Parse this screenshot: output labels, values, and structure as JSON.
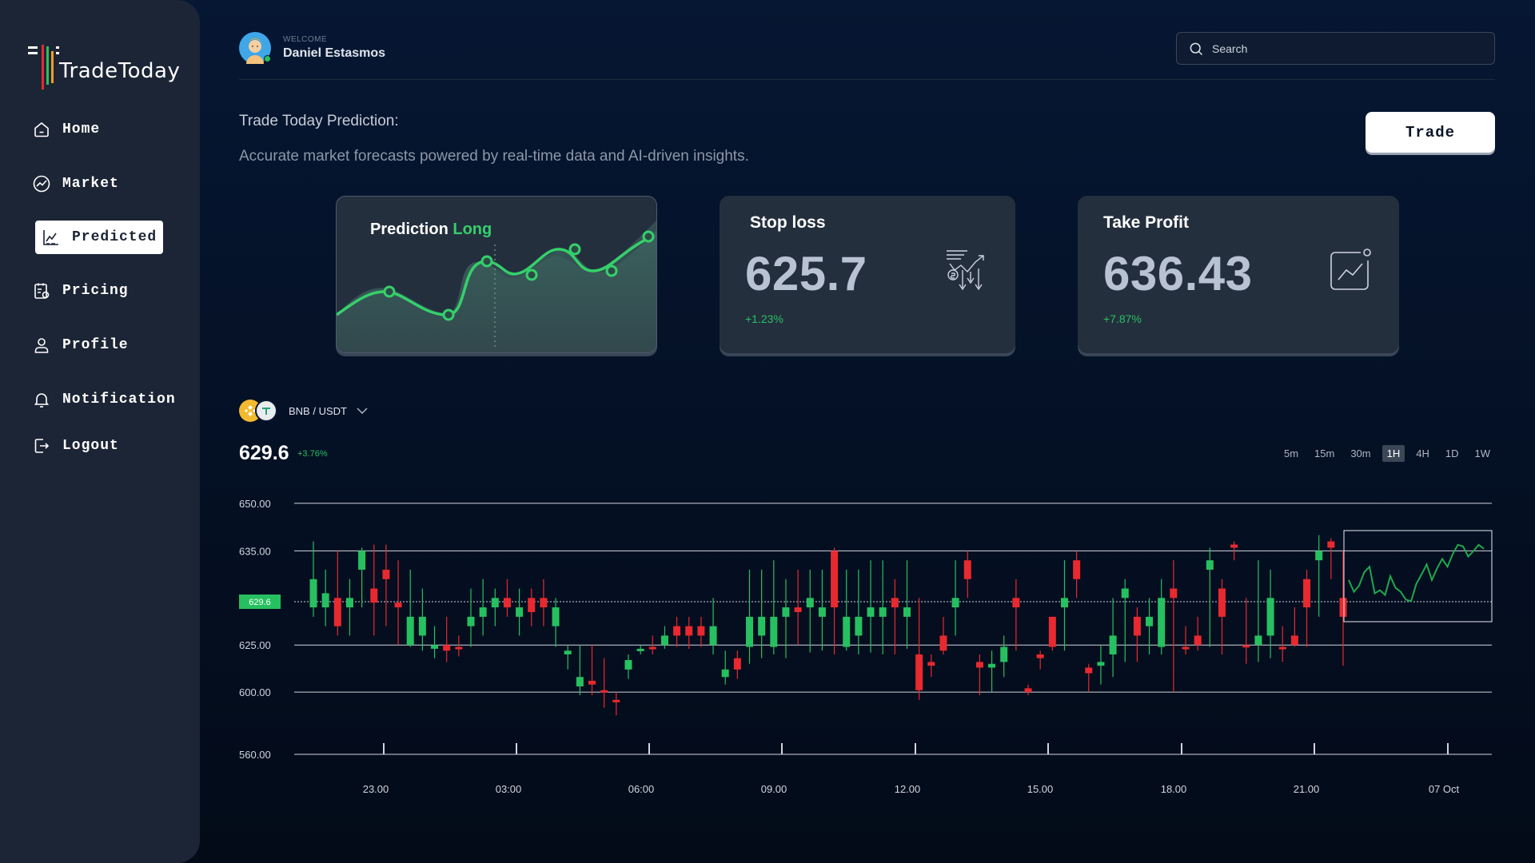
{
  "app": {
    "name": "TradeToday"
  },
  "sidebar": {
    "items": [
      {
        "label": "Home",
        "icon": "home-icon"
      },
      {
        "label": "Market",
        "icon": "market-icon"
      },
      {
        "label": "Predicted",
        "icon": "predicted-icon",
        "active": true
      },
      {
        "label": "Pricing",
        "icon": "pricing-icon"
      },
      {
        "label": "Profile",
        "icon": "profile-icon"
      },
      {
        "label": "Notification",
        "icon": "bell-icon"
      },
      {
        "label": "Logout",
        "icon": "logout-icon"
      }
    ]
  },
  "header": {
    "welcome": "WELCOME",
    "user_name": "Daniel Estasmos",
    "search_placeholder": "Search"
  },
  "prediction": {
    "title": "Trade Today Prediction:",
    "subtitle": "Accurate market forecasts powered by real-time data and AI-driven insights.",
    "trade_button": "Trade",
    "card_label": "Prediction",
    "direction": "Long"
  },
  "stop_loss": {
    "label": "Stop loss",
    "value": "625.7",
    "change": "+1.23%"
  },
  "take_profit": {
    "label": "Take Profit",
    "value": "636.43",
    "change": "+7.87%"
  },
  "market": {
    "pair": "BNB / USDT",
    "price": "629.6",
    "change": "+3.76%",
    "timeframes": [
      "5m",
      "15m",
      "30m",
      "1H",
      "4H",
      "1D",
      "1W"
    ],
    "active_timeframe": "1H"
  },
  "colors": {
    "up": "#27c060",
    "down": "#e8292f",
    "accent_green": "#35d06b",
    "background": "#061733",
    "sidebar": "#1c2535",
    "card": "#242f3e"
  },
  "chart_data": {
    "type": "candlestick",
    "y_ticks": [
      "650.00",
      "635.00",
      "625.00",
      "600.00",
      "560.00"
    ],
    "x_ticks": [
      "23.00",
      "03:00",
      "06:00",
      "09.00",
      "12.00",
      "15.00",
      "18.00",
      "21.00",
      "07 Oct"
    ],
    "current_price_label": "629.6",
    "candles": [
      {
        "o": 632,
        "c": 629,
        "h": 638,
        "l": 628,
        "up": true
      },
      {
        "o": 629,
        "c": 630.5,
        "h": 633,
        "l": 627,
        "up": true
      },
      {
        "o": 630,
        "c": 627,
        "h": 635,
        "l": 626,
        "up": false
      },
      {
        "o": 629,
        "c": 630,
        "h": 632,
        "l": 626,
        "up": true
      },
      {
        "o": 633,
        "c": 635,
        "h": 636,
        "l": 629,
        "up": true
      },
      {
        "o": 631,
        "c": 629.5,
        "h": 637,
        "l": 626,
        "up": false
      },
      {
        "o": 633,
        "c": 632,
        "h": 637,
        "l": 627,
        "up": false
      },
      {
        "o": 629,
        "c": 629.5,
        "h": 634,
        "l": 625,
        "up": false
      },
      {
        "o": 628,
        "c": 625,
        "h": 633,
        "l": 624,
        "up": true
      },
      {
        "o": 628,
        "c": 626,
        "h": 631,
        "l": 622,
        "up": true
      },
      {
        "o": 625,
        "c": 623,
        "h": 627,
        "l": 618,
        "up": true
      },
      {
        "o": 625,
        "c": 622,
        "h": 628,
        "l": 616,
        "up": false
      },
      {
        "o": 624,
        "c": 623,
        "h": 626,
        "l": 619,
        "up": false
      },
      {
        "o": 627,
        "c": 628,
        "h": 631,
        "l": 624,
        "up": true
      },
      {
        "o": 628,
        "c": 629,
        "h": 632,
        "l": 626,
        "up": true
      },
      {
        "o": 629,
        "c": 630,
        "h": 631,
        "l": 627,
        "up": true
      },
      {
        "o": 630,
        "c": 629,
        "h": 632,
        "l": 628,
        "up": false
      },
      {
        "o": 628,
        "c": 629,
        "h": 631,
        "l": 626,
        "up": true
      },
      {
        "o": 630,
        "c": 628.5,
        "h": 631,
        "l": 627,
        "up": false
      },
      {
        "o": 629,
        "c": 630,
        "h": 632,
        "l": 627,
        "up": false
      },
      {
        "o": 627,
        "c": 629,
        "h": 630,
        "l": 624,
        "up": true
      },
      {
        "o": 622,
        "c": 620,
        "h": 625,
        "l": 612,
        "up": true
      },
      {
        "o": 608,
        "c": 603,
        "h": 625,
        "l": 598,
        "up": true
      },
      {
        "o": 604,
        "c": 606,
        "h": 625,
        "l": 598,
        "up": false
      },
      {
        "o": 600,
        "c": 601,
        "h": 618,
        "l": 590,
        "up": false
      },
      {
        "o": 595,
        "c": 594,
        "h": 600,
        "l": 585,
        "up": false
      },
      {
        "o": 612,
        "c": 617,
        "h": 620,
        "l": 607,
        "up": true
      },
      {
        "o": 622,
        "c": 623,
        "h": 625,
        "l": 620,
        "up": true
      },
      {
        "o": 624,
        "c": 623,
        "h": 626,
        "l": 620,
        "up": false
      },
      {
        "o": 625,
        "c": 626,
        "h": 627,
        "l": 623,
        "up": true
      },
      {
        "o": 626,
        "c": 627,
        "h": 628,
        "l": 624,
        "up": false
      },
      {
        "o": 626,
        "c": 627,
        "h": 628,
        "l": 623,
        "up": false
      },
      {
        "o": 626,
        "c": 627,
        "h": 628,
        "l": 624,
        "up": false
      },
      {
        "o": 625,
        "c": 627,
        "h": 630,
        "l": 620,
        "up": true
      },
      {
        "o": 608,
        "c": 612,
        "h": 622,
        "l": 604,
        "up": true
      },
      {
        "o": 612,
        "c": 618,
        "h": 622,
        "l": 607,
        "up": false
      },
      {
        "o": 624,
        "c": 628,
        "h": 633,
        "l": 615,
        "up": true
      },
      {
        "o": 626,
        "c": 628,
        "h": 633,
        "l": 618,
        "up": true
      },
      {
        "o": 624,
        "c": 628,
        "h": 634,
        "l": 620,
        "up": true
      },
      {
        "o": 628,
        "c": 629,
        "h": 632,
        "l": 618,
        "up": true
      },
      {
        "o": 629,
        "c": 628.5,
        "h": 633,
        "l": 625,
        "up": false
      },
      {
        "o": 629,
        "c": 630,
        "h": 633,
        "l": 621,
        "up": true
      },
      {
        "o": 628,
        "c": 629,
        "h": 633,
        "l": 622,
        "up": true
      },
      {
        "o": 635,
        "c": 629,
        "h": 636,
        "l": 620,
        "up": false
      },
      {
        "o": 624,
        "c": 628,
        "h": 633,
        "l": 622,
        "up": true
      },
      {
        "o": 626,
        "c": 628,
        "h": 633,
        "l": 620,
        "up": true
      },
      {
        "o": 628,
        "c": 629,
        "h": 634,
        "l": 621,
        "up": true
      },
      {
        "o": 628,
        "c": 629,
        "h": 634,
        "l": 620,
        "up": true
      },
      {
        "o": 630,
        "c": 629,
        "h": 632,
        "l": 620,
        "up": false
      },
      {
        "o": 628,
        "c": 629,
        "h": 634,
        "l": 623,
        "up": true
      },
      {
        "o": 620,
        "c": 601,
        "h": 630,
        "l": 595,
        "up": false
      },
      {
        "o": 616,
        "c": 614,
        "h": 620,
        "l": 608,
        "up": false
      },
      {
        "o": 626,
        "c": 622,
        "h": 628,
        "l": 620,
        "up": false
      },
      {
        "o": 629,
        "c": 630,
        "h": 634,
        "l": 626,
        "up": true
      },
      {
        "o": 634,
        "c": 632,
        "h": 635,
        "l": 630,
        "up": false
      },
      {
        "o": 616,
        "c": 613,
        "h": 620,
        "l": 598,
        "up": false
      },
      {
        "o": 613,
        "c": 615,
        "h": 622,
        "l": 600,
        "up": true
      },
      {
        "o": 616,
        "c": 624,
        "h": 626,
        "l": 608,
        "up": true
      },
      {
        "o": 630,
        "c": 629,
        "h": 632,
        "l": 622,
        "up": false
      },
      {
        "o": 602,
        "c": 600,
        "h": 604,
        "l": 598,
        "up": false
      },
      {
        "o": 620,
        "c": 618,
        "h": 622,
        "l": 612,
        "up": false
      },
      {
        "o": 628,
        "c": 624,
        "h": 628,
        "l": 622,
        "up": false
      },
      {
        "o": 629,
        "c": 630,
        "h": 634,
        "l": 622,
        "up": true
      },
      {
        "o": 634,
        "c": 632,
        "h": 635,
        "l": 630,
        "up": false
      },
      {
        "o": 613,
        "c": 610,
        "h": 615,
        "l": 600,
        "up": false
      },
      {
        "o": 614,
        "c": 616,
        "h": 625,
        "l": 604,
        "up": true
      },
      {
        "o": 620,
        "c": 626,
        "h": 630,
        "l": 608,
        "up": true
      },
      {
        "o": 630,
        "c": 631,
        "h": 632,
        "l": 616,
        "up": true
      },
      {
        "o": 628,
        "c": 626,
        "h": 629,
        "l": 616,
        "up": false
      },
      {
        "o": 627,
        "c": 628,
        "h": 630,
        "l": 620,
        "up": true
      },
      {
        "o": 624,
        "c": 630,
        "h": 632,
        "l": 620,
        "up": true
      },
      {
        "o": 631,
        "c": 630,
        "h": 634,
        "l": 600,
        "up": false
      },
      {
        "o": 624,
        "c": 623,
        "h": 627,
        "l": 620,
        "up": false
      },
      {
        "o": 626,
        "c": 625,
        "h": 628,
        "l": 622,
        "up": false
      },
      {
        "o": 633,
        "c": 634,
        "h": 636,
        "l": 624,
        "up": true
      },
      {
        "o": 631,
        "c": 628,
        "h": 632,
        "l": 620,
        "up": false
      },
      {
        "o": 637,
        "c": 636,
        "h": 638,
        "l": 634,
        "up": false
      },
      {
        "o": 625,
        "c": 624,
        "h": 630,
        "l": 615,
        "up": false
      },
      {
        "o": 625,
        "c": 626,
        "h": 634,
        "l": 616,
        "up": true
      },
      {
        "o": 630,
        "c": 626,
        "h": 633,
        "l": 618,
        "up": true
      },
      {
        "o": 624,
        "c": 623,
        "h": 627,
        "l": 616,
        "up": false
      },
      {
        "o": 626,
        "c": 625,
        "h": 629,
        "l": 624,
        "up": false
      },
      {
        "o": 632,
        "c": 629,
        "h": 633,
        "l": 624,
        "up": false
      },
      {
        "o": 634,
        "c": 635,
        "h": 640,
        "l": 628,
        "up": true
      },
      {
        "o": 638,
        "c": 636,
        "h": 639,
        "l": 632,
        "up": false
      },
      {
        "o": 630,
        "c": 628,
        "h": 635,
        "l": 614,
        "up": false
      }
    ],
    "prediction_line": [
      0.55,
      0.7,
      0.62,
      0.45,
      0.38,
      0.72,
      0.68,
      0.74,
      0.5,
      0.65,
      0.7,
      0.8,
      0.82,
      0.6,
      0.48,
      0.35,
      0.55,
      0.4,
      0.28,
      0.38,
      0.22,
      0.1,
      0.12,
      0.25,
      0.18,
      0.1,
      0.15
    ]
  }
}
